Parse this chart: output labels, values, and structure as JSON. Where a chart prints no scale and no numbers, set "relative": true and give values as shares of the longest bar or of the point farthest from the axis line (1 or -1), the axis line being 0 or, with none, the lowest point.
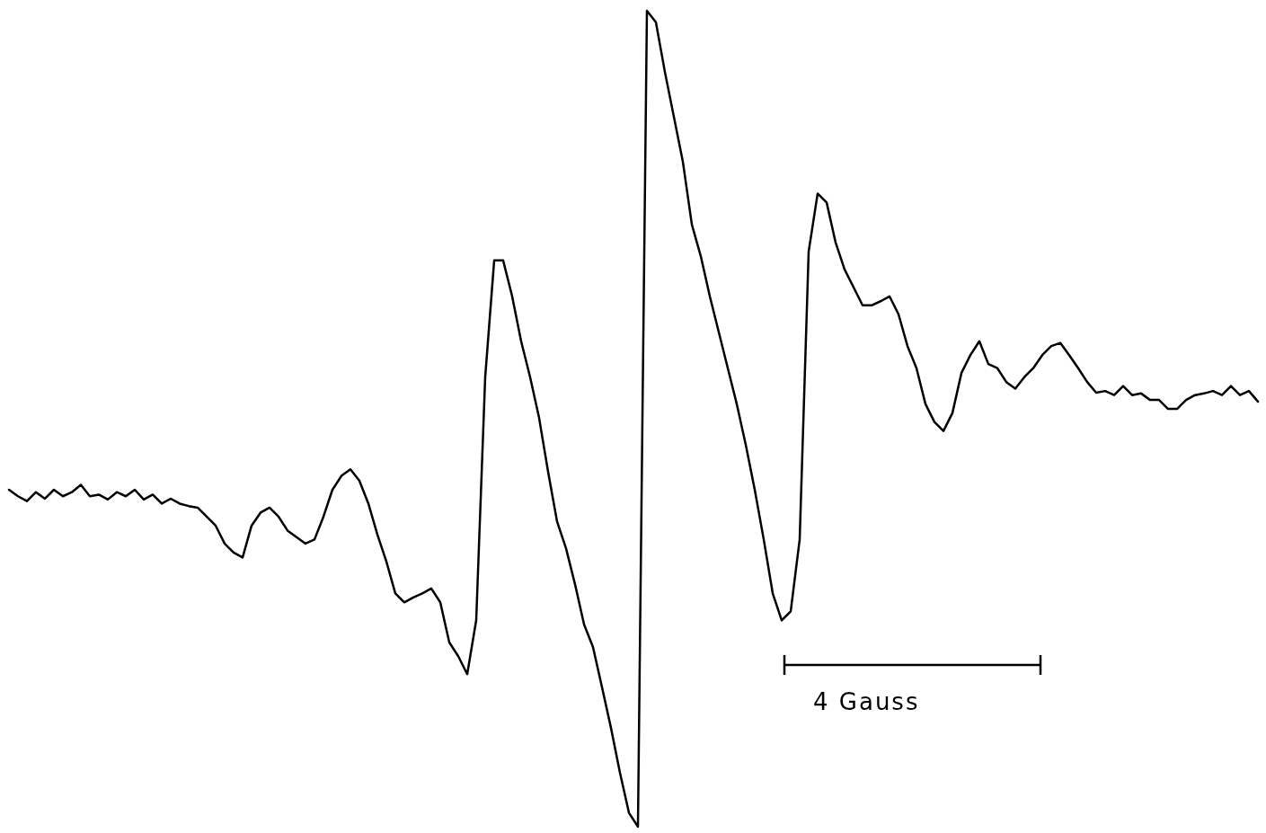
{
  "chart_data": {
    "type": "line",
    "relative": true,
    "categories": [
      null,
      null,
      null,
      null,
      null,
      null,
      null,
      null,
      null,
      null,
      null,
      null,
      null,
      null,
      null,
      null,
      null,
      null,
      null,
      null,
      null,
      null,
      null,
      null,
      null,
      null,
      null,
      null,
      null,
      null,
      null,
      null,
      null,
      null,
      null,
      null,
      null,
      null,
      null,
      null,
      null,
      null,
      null,
      null,
      null,
      null,
      null,
      null,
      null,
      null,
      null,
      null,
      null,
      null,
      null,
      null,
      null,
      null,
      null,
      null,
      null,
      null,
      null,
      null,
      null,
      null,
      null,
      null,
      null,
      null,
      null,
      null,
      null,
      null,
      null,
      null,
      null,
      null,
      null,
      null,
      null,
      null,
      null,
      null,
      null,
      null,
      null,
      null,
      null,
      null,
      null,
      null,
      null,
      null,
      null,
      null,
      null,
      null,
      null,
      null,
      null,
      null,
      null,
      null,
      null,
      null,
      null,
      null,
      null,
      null,
      null,
      null,
      null,
      null,
      null,
      null,
      null,
      null,
      null,
      null,
      null,
      null,
      null,
      null,
      null,
      null,
      null,
      null,
      null,
      null,
      null,
      null,
      null,
      null,
      null,
      null,
      null,
      null,
      null,
      null
    ],
    "series": [
      {
        "color": "#000000",
        "values": [
          0.413,
          0.405,
          0.399,
          0.41,
          0.402,
          0.413,
          0.405,
          0.41,
          0.419,
          0.405,
          0.407,
          0.401,
          0.41,
          0.405,
          0.413,
          0.401,
          0.407,
          0.396,
          0.402,
          0.396,
          0.393,
          0.391,
          0.38,
          0.369,
          0.347,
          0.336,
          0.33,
          0.369,
          0.385,
          0.391,
          0.38,
          0.363,
          0.355,
          0.347,
          0.352,
          0.38,
          0.413,
          0.43,
          0.438,
          0.424,
          0.396,
          0.358,
          0.325,
          0.286,
          0.275,
          0.281,
          0.286,
          0.292,
          0.275,
          0.226,
          0.209,
          0.187,
          0.253,
          0.551,
          0.694,
          0.694,
          0.65,
          0.595,
          0.551,
          0.501,
          0.435,
          0.374,
          0.341,
          0.297,
          0.248,
          0.22,
          0.171,
          0.121,
          0.066,
          0.017,
          0,
          1,
          0.986,
          0.925,
          0.87,
          0.815,
          0.738,
          0.699,
          0.65,
          0.606,
          0.562,
          0.518,
          0.468,
          0.413,
          0.352,
          0.286,
          0.253,
          0.264,
          0.352,
          0.705,
          0.776,
          0.765,
          0.716,
          0.683,
          0.661,
          0.639,
          0.639,
          0.644,
          0.65,
          0.628,
          0.589,
          0.562,
          0.518,
          0.496,
          0.485,
          0.507,
          0.556,
          0.578,
          0.595,
          0.567,
          0.562,
          0.545,
          0.537,
          0.551,
          0.562,
          0.578,
          0.589,
          0.593,
          0.578,
          0.562,
          0.545,
          0.532,
          0.534,
          0.529,
          0.54,
          0.529,
          0.531,
          0.523,
          0.523,
          0.512,
          0.512,
          0.523,
          0.529,
          0.531,
          0.534,
          0.529,
          0.54,
          0.529,
          0.534,
          0.521
        ]
      }
    ],
    "annotations": [
      "4 Gauss"
    ]
  }
}
